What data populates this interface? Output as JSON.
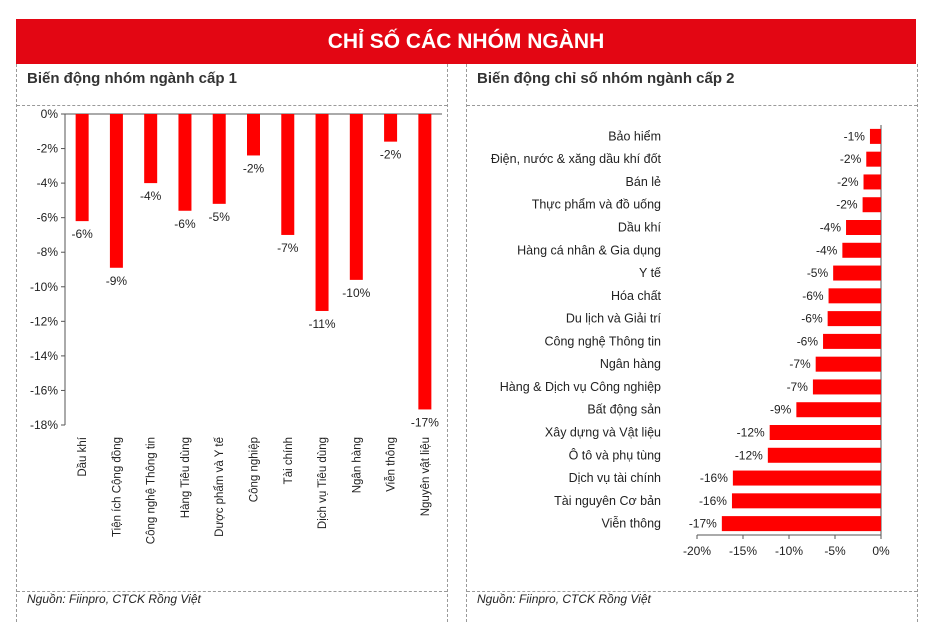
{
  "header": {
    "title": "CHỈ SỐ CÁC NHÓM NGÀNH"
  },
  "left_panel": {
    "subtitle": "Biến động nhóm ngành cấp 1",
    "source": "Nguồn: Fiinpro, CTCK Rồng Việt"
  },
  "right_panel": {
    "subtitle": "Biến động chỉ số nhóm ngành cấp 2",
    "source": "Nguồn: Fiinpro, CTCK Rồng Việt"
  },
  "colors": {
    "bar": "#ff0000",
    "header": "#e30613"
  },
  "chart_data": [
    {
      "type": "bar",
      "orientation": "vertical",
      "title": "Biến động nhóm ngành cấp 1",
      "categories": [
        "Dầu khí",
        "Tiện ích Cộng đồng",
        "Công nghệ Thông tin",
        "Hàng Tiêu dùng",
        "Dược phẩm và Y tế",
        "Công nghiệp",
        "Tài chính",
        "Dịch vụ Tiêu dùng",
        "Ngân hàng",
        "Viễn thông",
        "Nguyên vật liệu"
      ],
      "values": [
        -6.2,
        -8.9,
        -4.0,
        -5.6,
        -5.2,
        -2.4,
        -7.0,
        -11.4,
        -9.6,
        -1.6,
        -17.1
      ],
      "data_labels": [
        "-6%",
        "-9%",
        "-4%",
        "-6%",
        "-5%",
        "-2%",
        "-7%",
        "-11%",
        "-10%",
        "-2%",
        "-17%"
      ],
      "yticks": [
        0,
        -2,
        -4,
        -6,
        -8,
        -10,
        -12,
        -14,
        -16,
        -18
      ],
      "ytick_labels": [
        "0%",
        "-2%",
        "-4%",
        "-6%",
        "-8%",
        "-10%",
        "-12%",
        "-14%",
        "-16%",
        "-18%"
      ],
      "ylim": [
        -18,
        0
      ]
    },
    {
      "type": "bar",
      "orientation": "horizontal",
      "title": "Biến động chỉ số nhóm ngành cấp 2",
      "categories": [
        "Bảo hiểm",
        "Điện, nước & xăng dầu khí đốt",
        "Bán lẻ",
        "Thực phẩm và đồ uống",
        "Dầu khí",
        "Hàng cá nhân & Gia dụng",
        "Y tế",
        "Hóa chất",
        "Du lịch và Giải trí",
        "Công nghệ Thông tin",
        "Ngân hàng",
        "Hàng & Dịch vụ Công nghiệp",
        "Bất động sản",
        "Xây dựng và Vật liệu",
        "Ô tô và phụ tùng",
        "Dịch vụ tài chính",
        "Tài nguyên Cơ bản",
        "Viễn thông"
      ],
      "values": [
        -1.2,
        -1.6,
        -1.9,
        -2.0,
        -3.8,
        -4.2,
        -5.2,
        -5.7,
        -5.8,
        -6.3,
        -7.1,
        -7.4,
        -9.2,
        -12.1,
        -12.3,
        -16.1,
        -16.2,
        -17.3
      ],
      "data_labels": [
        "-1%",
        "-2%",
        "-2%",
        "-2%",
        "-4%",
        "-4%",
        "-5%",
        "-6%",
        "-6%",
        "-6%",
        "-7%",
        "-7%",
        "-9%",
        "-12%",
        "-12%",
        "-16%",
        "-16%",
        "-17%"
      ],
      "xticks": [
        -20,
        -15,
        -10,
        -5,
        0
      ],
      "xtick_labels": [
        "-20%",
        "-15%",
        "-10%",
        "-5%",
        "0%"
      ],
      "xlim": [
        -20,
        0
      ]
    }
  ]
}
